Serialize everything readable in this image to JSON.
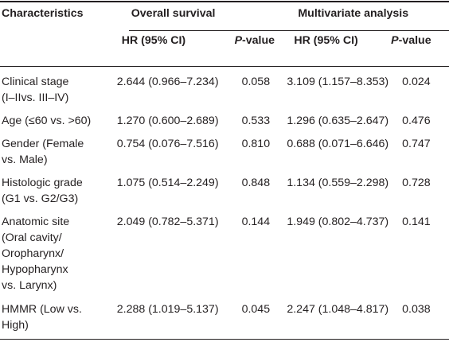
{
  "header": {
    "characteristics": "Characteristics",
    "overall_survival": "Overall survival",
    "multivariate_analysis": "Multivariate analysis",
    "hr_ci_1": "HR (95% CI)",
    "p_label_1_italic": "P",
    "p_label_1_rest": "-value",
    "hr_ci_2": "HR (95% CI)",
    "p_label_2_italic": "P",
    "p_label_2_rest": "-value"
  },
  "rows": [
    {
      "char": [
        "Clinical stage",
        "(I–IIvs. III–IV)"
      ],
      "os_hr": "2.644 (0.966–7.234)",
      "os_p": "0.058",
      "mv_hr": "3.109 (1.157–8.353)",
      "mv_p": "0.024"
    },
    {
      "char": [
        "Age (≤60 vs. >60)"
      ],
      "os_hr": "1.270 (0.600–2.689)",
      "os_p": "0.533",
      "mv_hr": "1.296 (0.635–2.647)",
      "mv_p": "0.476"
    },
    {
      "char": [
        "Gender (Female",
        "vs. Male)"
      ],
      "os_hr": "0.754 (0.076–7.516)",
      "os_p": "0.810",
      "mv_hr": "0.688 (0.071–6.646)",
      "mv_p": "0.747"
    },
    {
      "char": [
        "Histologic grade",
        "(G1 vs. G2/G3)"
      ],
      "os_hr": "1.075 (0.514–2.249)",
      "os_p": "0.848",
      "mv_hr": "1.134 (0.559–2.298)",
      "mv_p": "0.728"
    },
    {
      "char": [
        "Anatomic site",
        "(Oral cavity/",
        "Oropharynx/",
        "Hypopharynx",
        "vs. Larynx)"
      ],
      "os_hr": "2.049 (0.782–5.371)",
      "os_p": "0.144",
      "mv_hr": "1.949 (0.802–4.737)",
      "mv_p": "0.141"
    },
    {
      "char": [
        "HMMR (Low vs.",
        "High)"
      ],
      "os_hr": "2.288 (1.019–5.137)",
      "os_p": "0.045",
      "mv_hr": "2.247 (1.048–4.817)",
      "mv_p": "0.038"
    }
  ]
}
